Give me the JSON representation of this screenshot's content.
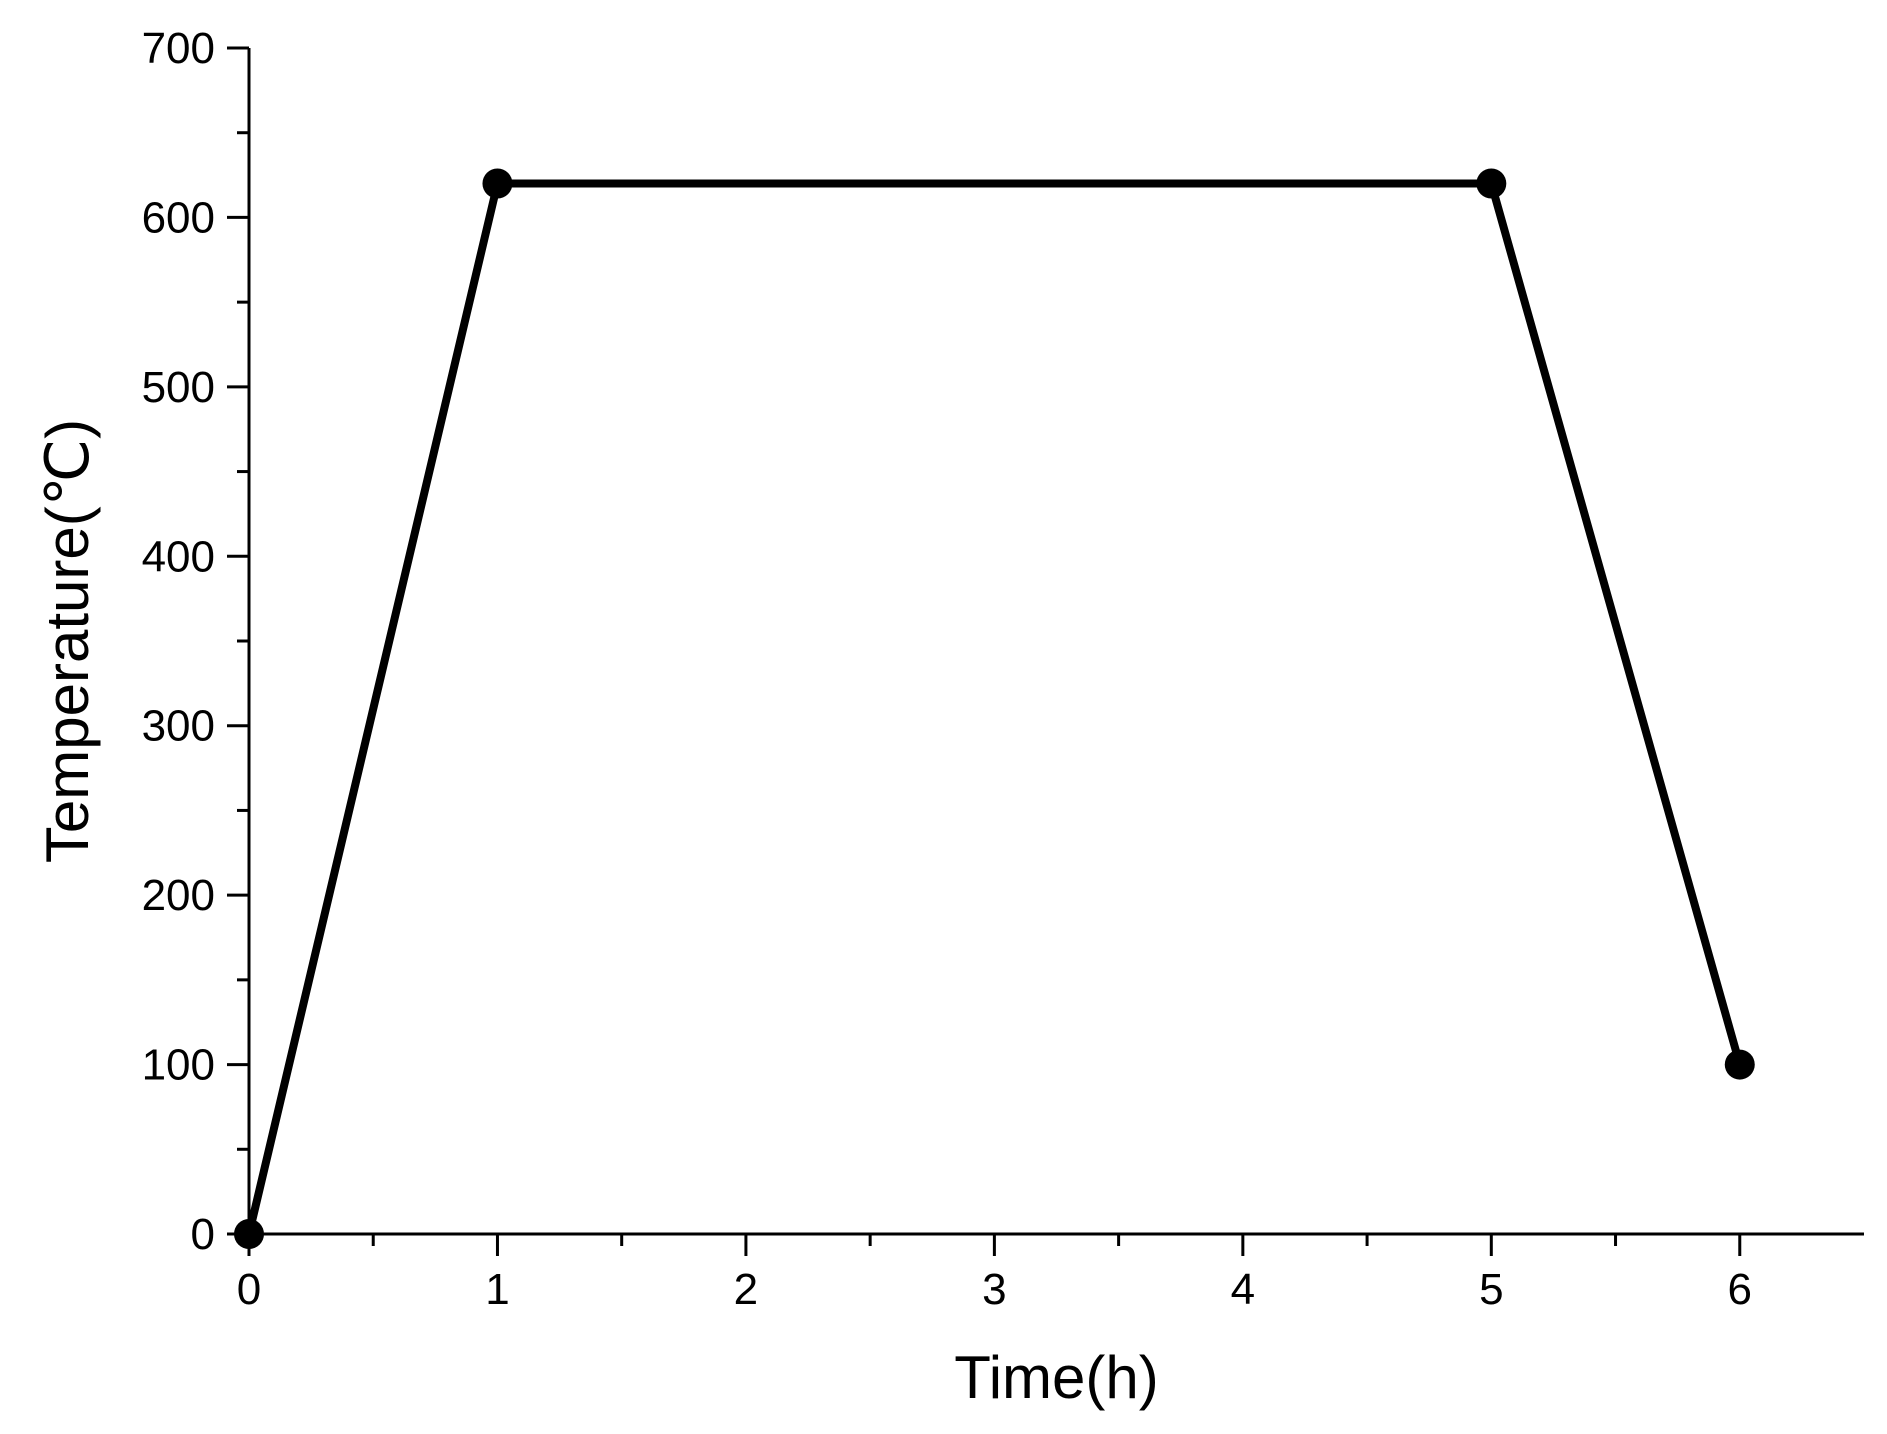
{
  "chart_data": {
    "type": "line",
    "title": "",
    "xlabel": "Time(h)",
    "ylabel": "Temperature(℃)",
    "xlim": [
      0,
      6.5
    ],
    "ylim": [
      0,
      700
    ],
    "xticks": [
      0,
      1,
      2,
      3,
      4,
      5,
      6
    ],
    "yticks": [
      0,
      100,
      200,
      300,
      400,
      500,
      600,
      700
    ],
    "grid": false,
    "legend": "none",
    "series": [
      {
        "x": [
          0,
          1,
          5,
          6
        ],
        "y": [
          0,
          620,
          620,
          100
        ],
        "marker": "circle",
        "color": "#000000"
      }
    ]
  }
}
